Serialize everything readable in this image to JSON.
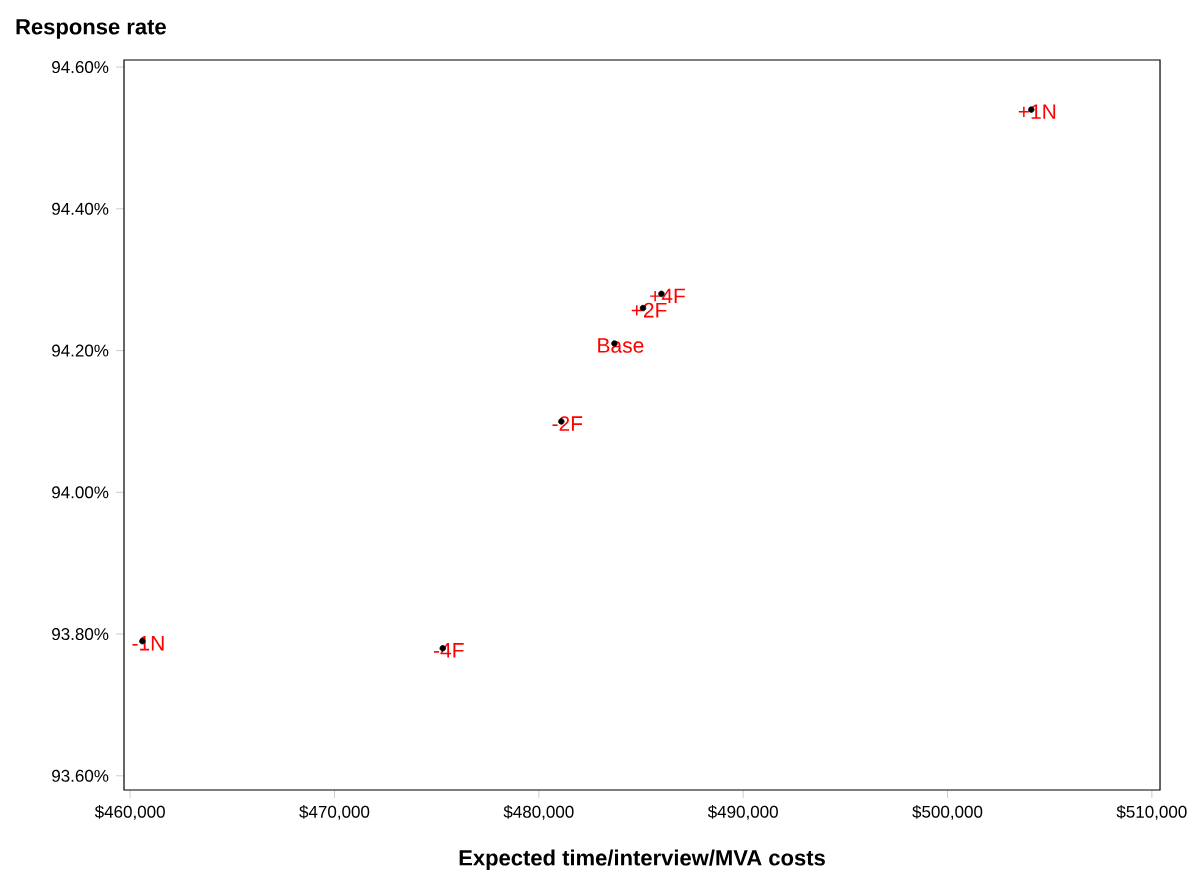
{
  "chart_data": {
    "type": "scatter",
    "ylabel": "Response rate",
    "xlabel": "Expected time/interview/MVA costs",
    "x": [
      504100,
      486000,
      485100,
      483700,
      481100,
      460600,
      475300
    ],
    "series": [
      {
        "color": "#000000",
        "values": [
          94.54,
          94.28,
          94.26,
          94.21,
          94.1,
          93.79,
          93.78
        ]
      }
    ],
    "marker": "circle",
    "grid": false,
    "xlim": [
      459700,
      510400
    ],
    "ylim": [
      93.58,
      94.61
    ],
    "xticks": [
      {
        "value": 460000,
        "label": "$460,000"
      },
      {
        "value": 470000,
        "label": "$470,000"
      },
      {
        "value": 480000,
        "label": "$480,000"
      },
      {
        "value": 490000,
        "label": "$490,000"
      },
      {
        "value": 500000,
        "label": "$500,000"
      },
      {
        "value": 510000,
        "label": "$510,000"
      }
    ],
    "yticks": [
      {
        "value": 93.6,
        "label": "93.60%"
      },
      {
        "value": 93.8,
        "label": "93.80%"
      },
      {
        "value": 94.0,
        "label": "94.00%"
      },
      {
        "value": 94.2,
        "label": "94.20%"
      },
      {
        "value": 94.4,
        "label": "94.40%"
      },
      {
        "value": 94.6,
        "label": "94.60%"
      }
    ],
    "annotations": [
      {
        "text": "+1N",
        "x": 504100,
        "y": 94.54
      },
      {
        "text": "+4F",
        "x": 486000,
        "y": 94.28
      },
      {
        "text": "+2F",
        "x": 485100,
        "y": 94.26
      },
      {
        "text": "Base",
        "x": 483700,
        "y": 94.21
      },
      {
        "text": "-2F",
        "x": 481100,
        "y": 94.1
      },
      {
        "text": "-1N",
        "x": 460600,
        "y": 93.79
      },
      {
        "text": "-4F",
        "x": 475300,
        "y": 93.78
      }
    ]
  }
}
